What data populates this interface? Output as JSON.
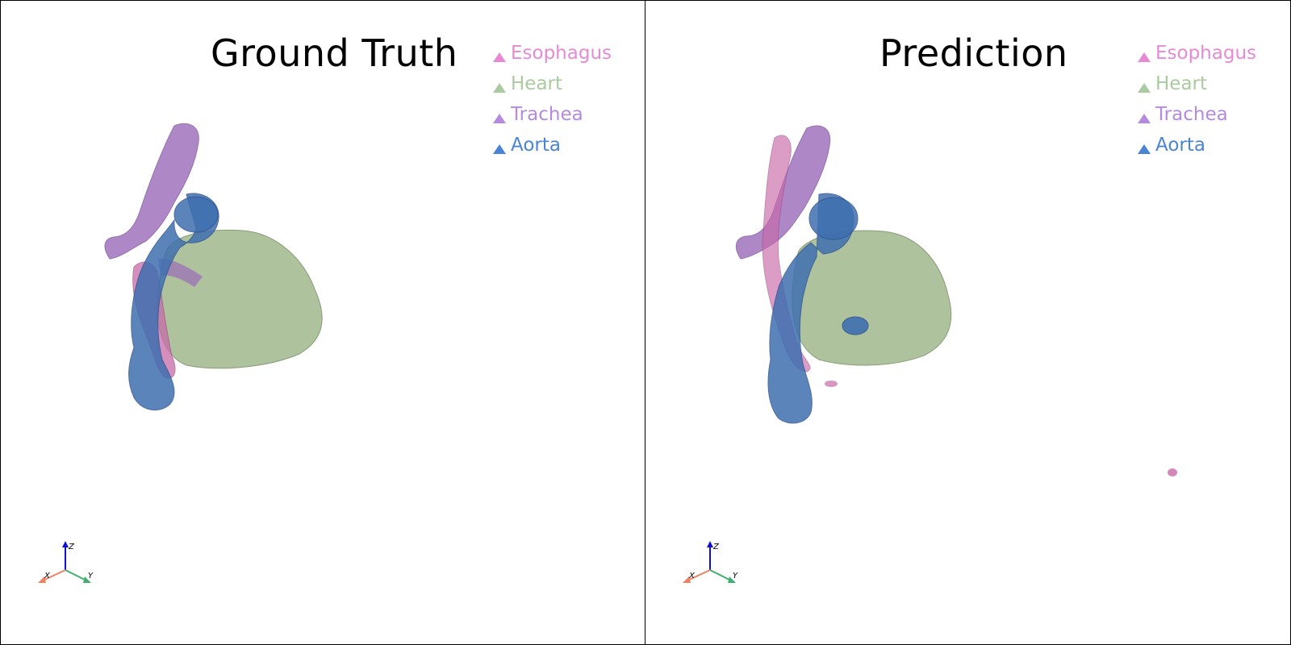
{
  "panels": [
    {
      "title": "Ground Truth",
      "legend": [
        {
          "label": "Esophagus",
          "color": "#e68ad6"
        },
        {
          "label": "Heart",
          "color": "#aacb9f"
        },
        {
          "label": "Trachea",
          "color": "#b58ae0"
        },
        {
          "label": "Aorta",
          "color": "#4a84d4"
        }
      ],
      "axes": {
        "x": "X",
        "y": "Y",
        "z": "Z"
      }
    },
    {
      "title": "Prediction",
      "legend": [
        {
          "label": "Esophagus",
          "color": "#e68ad6"
        },
        {
          "label": "Heart",
          "color": "#aacb9f"
        },
        {
          "label": "Trachea",
          "color": "#b58ae0"
        },
        {
          "label": "Aorta",
          "color": "#4a84d4"
        }
      ],
      "axes": {
        "x": "X",
        "y": "Y",
        "z": "Z"
      }
    }
  ],
  "colors": {
    "heart_fill": "#a9bd96",
    "aorta_fill": "#3f6fb0",
    "trachea_fill": "#9a6bb8",
    "esophagus_fill": "#c86aa8",
    "axis_x": "#f08060",
    "axis_y": "#40b070",
    "axis_z": "#1010d0"
  }
}
